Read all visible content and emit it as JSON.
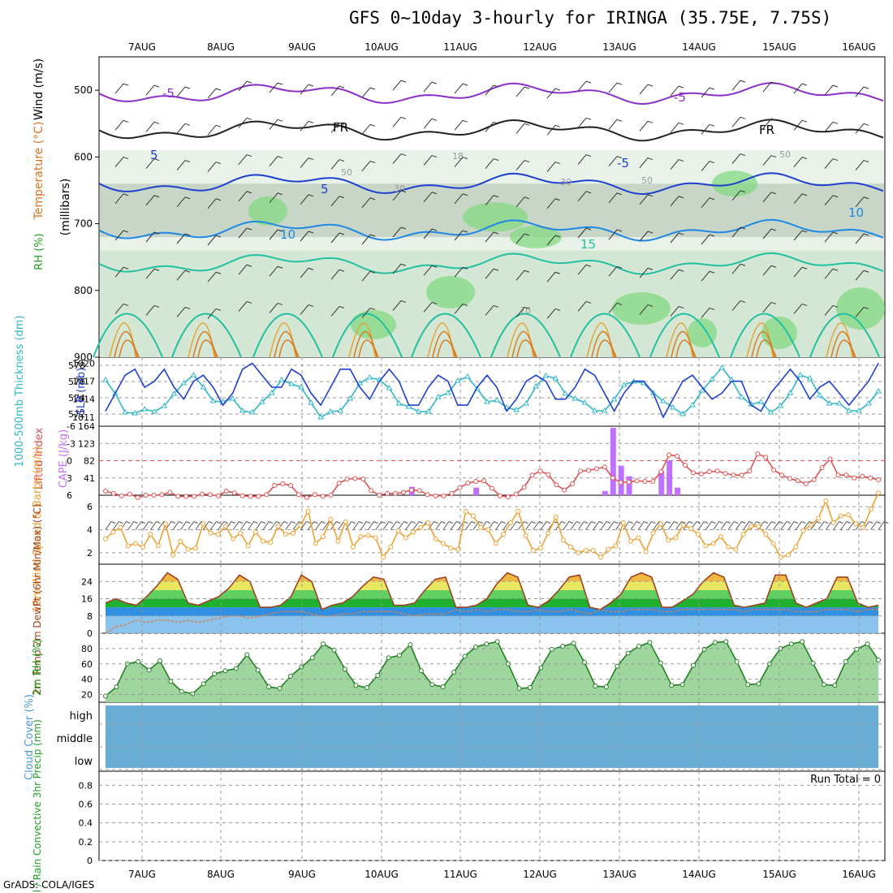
{
  "title": "GFS 0~10day 3-hourly for IRINGA (35.75E, 7.75S)",
  "footer": "GrADS: COLA/IGES",
  "colors": {
    "grid": "#999999",
    "purple": "#8b2fc9",
    "blue_dark": "#1f3fcf",
    "blue_mid": "#1e88e5",
    "teal": "#20c0a0",
    "orange": "#e8a030",
    "cyan": "#2fb8c8",
    "lifted": "#e05050",
    "cape": "#c070ff",
    "wind_speed": "#f0a030",
    "rh_green": "#20b020",
    "cloud": "#6aaed6"
  },
  "chart_data": [
    {
      "id": "upper_air",
      "type": "heatmap",
      "xlabel": "",
      "ylabel": "(millibars)",
      "axis_title_parts": [
        "RH (%)",
        "Temperature (°C)",
        "Wind (m/s)"
      ],
      "x": [
        "7AUG",
        "8AUG",
        "9AUG",
        "10AUG",
        "11AUG",
        "12AUG",
        "13AUG",
        "14AUG",
        "15AUG",
        "16AUG"
      ],
      "yticks": [
        500,
        600,
        700,
        800,
        900
      ],
      "ylim": [
        900,
        450
      ],
      "contour_labels": [
        "-5",
        "-5",
        "FR",
        "FR",
        "5",
        "5",
        "-5",
        "10",
        "10",
        "15",
        "30",
        "30",
        "50",
        "50",
        "50",
        "70",
        "18"
      ],
      "isotherms": [
        {
          "name": "-5",
          "level_mb": 505
        },
        {
          "name": "FR",
          "level_mb": 560
        },
        {
          "name": "5",
          "level_mb": 640
        },
        {
          "name": "10",
          "level_mb": 710
        },
        {
          "name": "15",
          "level_mb": 760
        }
      ]
    },
    {
      "id": "thickness_slp",
      "type": "line",
      "ylabel_left": "1000-500mb Thickness (dm)",
      "ylabel_right": "SLP (mb)",
      "yticks_left": [
        572,
        574,
        576,
        578
      ],
      "yticks_right": [
        1011,
        1014,
        1017,
        1020
      ],
      "series": [
        {
          "name": "SLP",
          "color": "#1f3fcf",
          "values": [
            1012,
            1015,
            1018,
            1019,
            1016,
            1017,
            1019,
            1016,
            1014,
            1017,
            1018,
            1016,
            1013,
            1015,
            1019,
            1020,
            1018,
            1016,
            1016,
            1019,
            1018,
            1015,
            1013,
            1016,
            1019,
            1019,
            1016,
            1014,
            1017,
            1019,
            1017,
            1013,
            1013,
            1016,
            1018,
            1017,
            1013,
            1013,
            1016,
            1018,
            1016,
            1012,
            1014,
            1017,
            1018,
            1017,
            1014,
            1014,
            1016,
            1019,
            1018,
            1015,
            1012,
            1015,
            1017,
            1017,
            1015,
            1011,
            1014,
            1017,
            1018,
            1016,
            1014,
            1015,
            1017,
            1017,
            1013,
            1012,
            1015,
            1017,
            1019,
            1017,
            1014,
            1016,
            1017,
            1015,
            1013,
            1015,
            1017,
            1020
          ]
        },
        {
          "name": "Thickness",
          "color": "#2fb8c8",
          "values": [
            576.2,
            574.5,
            572.2,
            572.1,
            572.6,
            572.3,
            573.0,
            574.5,
            575.8,
            576.8,
            575.3,
            573.6,
            573.5,
            573.9,
            572.4,
            572.2,
            573.5,
            574.6,
            576.2,
            575.7,
            575.3,
            573.4,
            571.6,
            572.3,
            572.4,
            573.9,
            575.8,
            576.5,
            576.2,
            575.2,
            573.3,
            572.9,
            572.3,
            572.3,
            574.1,
            574.6,
            576.1,
            576.6,
            575.1,
            573.5,
            573.7,
            572.8,
            572.5,
            573.3,
            575.4,
            576.7,
            576.4,
            574.5,
            573.9,
            573.4,
            572.4,
            572.4,
            573.8,
            575.6,
            576.0,
            575.8,
            574.6,
            573.6,
            572.8,
            572.0,
            573.1,
            574.9,
            576.3,
            577.7,
            576.2,
            574.1,
            573.2,
            573.5,
            572.2,
            573.0,
            574.6,
            576.8,
            576.4,
            574.3,
            573.3,
            573.3,
            572.4,
            572.4,
            573.3,
            574.8
          ]
        }
      ]
    },
    {
      "id": "cape_li",
      "type": "bar",
      "ylabel_left": "Lifted Index",
      "ylabel_right": "CAPE (J/kg)",
      "yticks_left": [
        -6,
        -3,
        0,
        3,
        6
      ],
      "yticks_right": [
        41,
        82,
        123,
        164
      ],
      "lifted_index": [
        5.3,
        5.7,
        6.1,
        5.8,
        6.4,
        6.0,
        6.0,
        5.9,
        5.5,
        6.2,
        6.2,
        6.2,
        5.8,
        5.9,
        6.1,
        5.3,
        5.6,
        6.1,
        6.2,
        6.2,
        5.9,
        4.3,
        4.0,
        4.3,
        5.9,
        6.4,
        5.9,
        6.2,
        6.0,
        3.9,
        3.2,
        3.1,
        3.2,
        5.2,
        6.0,
        5.7,
        5.7,
        5.5,
        5.1,
        5.2,
        5.9,
        6.1,
        6.1,
        5.7,
        4.7,
        3.9,
        3.6,
        3.5,
        4.8,
        6.1,
        6.3,
        5.8,
        4.6,
        2.5,
        1.8,
        2.4,
        4.2,
        5.1,
        4.0,
        1.8,
        1.7,
        1.4,
        1.1,
        3.0,
        3.8,
        3.7,
        3.5,
        3.6,
        3.6,
        1.9,
        -1.0,
        -0.8,
        0.8,
        2.1,
        2.3,
        1.9,
        1.8,
        2.2,
        2.5,
        2.5,
        1.8,
        -1.2,
        -0.6,
        1.6,
        2.5,
        3.1,
        3.5,
        4.0,
        3.3,
        1.2,
        -0.3,
        2.5,
        2.5,
        3.0,
        2.7,
        3.0,
        3.3
      ],
      "cape_bars": [
        {
          "x_index": 38,
          "value": 20
        },
        {
          "x_index": 46,
          "value": 18
        },
        {
          "x_index": 62,
          "value": 10
        },
        {
          "x_index": 63,
          "value": 160
        },
        {
          "x_index": 64,
          "value": 70
        },
        {
          "x_index": 65,
          "value": 45
        },
        {
          "x_index": 69,
          "value": 58
        },
        {
          "x_index": 70,
          "value": 82
        },
        {
          "x_index": 71,
          "value": 18
        }
      ]
    },
    {
      "id": "wind10m",
      "type": "line",
      "ylabel_left": "10m Wind Speed & Barbs (m/s)",
      "yticks_left": [
        2,
        4,
        6
      ],
      "ylim": [
        1,
        7
      ],
      "series": [
        {
          "name": "Speed",
          "color": "#f0a030",
          "values": [
            3.2,
            3.8,
            4.2,
            2.6,
            2.8,
            2.5,
            3.6,
            2.6,
            4.5,
            1.8,
            3.0,
            2.3,
            2.4,
            4.5,
            3.7,
            3.6,
            4.3,
            3.2,
            3.7,
            2.6,
            3.8,
            3.0,
            2.9,
            4.3,
            3.6,
            3.7,
            4.4,
            5.6,
            2.8,
            3.4,
            4.9,
            3.0,
            4.7,
            2.5,
            3.4,
            3.5,
            3.3,
            1.6,
            2.5,
            3.9,
            3.3,
            3.8,
            4.2,
            4.6,
            3.2,
            2.8,
            2.4,
            2.3,
            5.6,
            5.2,
            4.2,
            4.0,
            2.8,
            3.6,
            4.6,
            5.6,
            3.5,
            2.2,
            2.4,
            3.7,
            5.1,
            3.1,
            2.5,
            2.0,
            2.2,
            2.2,
            1.6,
            2.3,
            2.6,
            4.6,
            3.0,
            3.3,
            2.1,
            3.7,
            4.5,
            3.1,
            3.3,
            4.4,
            4.1,
            3.6,
            2.6,
            2.8,
            3.4,
            2.5,
            2.3,
            3.6,
            4.3,
            4.3,
            3.6,
            2.8,
            1.6,
            1.8,
            2.5,
            3.9,
            4.4,
            5.0,
            6.5,
            4.6,
            5.2,
            5.3,
            4.5,
            4.2,
            5.8,
            7.2
          ]
        }
      ]
    },
    {
      "id": "temp2m",
      "type": "area",
      "ylabel_left": "2m Temp 2m DewPt (6hr Min/Max) (°C)",
      "yticks_left": [
        0,
        8,
        16,
        24
      ],
      "series": [
        {
          "name": "2m Temp",
          "values": [
            14,
            16,
            14,
            13,
            17,
            22,
            28,
            25,
            14,
            13,
            15,
            17,
            21,
            27,
            24,
            12,
            12,
            13,
            17,
            27,
            24,
            11,
            13,
            14,
            17,
            22,
            26,
            25,
            13,
            13,
            14,
            20,
            25,
            26,
            12,
            12,
            13,
            16,
            23,
            28,
            26,
            13,
            12,
            15,
            20,
            26,
            27,
            12,
            11,
            14,
            18,
            26,
            28,
            26,
            12,
            12,
            15,
            18,
            24,
            28,
            26,
            13,
            12,
            13,
            14,
            27,
            27,
            14,
            12,
            14,
            16,
            26,
            26,
            14,
            12,
            13
          ]
        },
        {
          "name": "2m DewPt",
          "values": [
            0,
            3,
            4,
            6,
            5,
            6,
            6,
            5,
            6,
            5,
            6,
            7,
            8,
            8,
            7,
            8,
            9,
            10,
            10,
            10,
            9,
            8,
            8,
            9,
            9,
            10,
            10,
            10,
            10,
            9,
            8,
            9,
            9,
            9,
            11,
            10,
            11,
            10,
            11,
            11,
            10,
            10,
            11,
            10,
            10,
            11,
            10,
            9,
            11,
            10,
            10,
            11,
            11,
            11,
            10,
            10,
            11,
            11,
            11,
            11,
            11,
            11,
            10,
            11,
            11,
            11,
            11,
            10,
            10,
            10,
            11,
            11,
            11,
            10,
            11,
            11
          ]
        }
      ]
    },
    {
      "id": "rh2m",
      "type": "area",
      "ylabel_left": "2m RH (%)",
      "yticks_left": [
        20,
        40,
        60,
        80
      ],
      "series": [
        {
          "name": "2m RH",
          "values": [
            18,
            30,
            60,
            63,
            52,
            64,
            37,
            24,
            21,
            34,
            47,
            51,
            54,
            72,
            52,
            30,
            28,
            44,
            56,
            68,
            86,
            78,
            53,
            32,
            29,
            45,
            68,
            71,
            85,
            51,
            33,
            30,
            49,
            70,
            82,
            86,
            89,
            60,
            28,
            29,
            55,
            79,
            83,
            87,
            62,
            31,
            30,
            57,
            74,
            83,
            88,
            61,
            32,
            33,
            58,
            79,
            88,
            89,
            63,
            33,
            34,
            60,
            80,
            86,
            89,
            61,
            33,
            32,
            63,
            79,
            86,
            65
          ]
        }
      ]
    },
    {
      "id": "cloud_cover",
      "type": "bar",
      "ylabel_left": "Cloud Cover (%)",
      "categories": [
        "high",
        "middle",
        "low"
      ]
    },
    {
      "id": "precip",
      "type": "bar",
      "ylabel_left": "Total / Rain Convective 3hr Precip (mm)",
      "yticks_left": [
        0,
        0.2,
        0.4,
        0.6,
        0.8
      ],
      "annotation": "Run Total = 0",
      "values": []
    }
  ]
}
